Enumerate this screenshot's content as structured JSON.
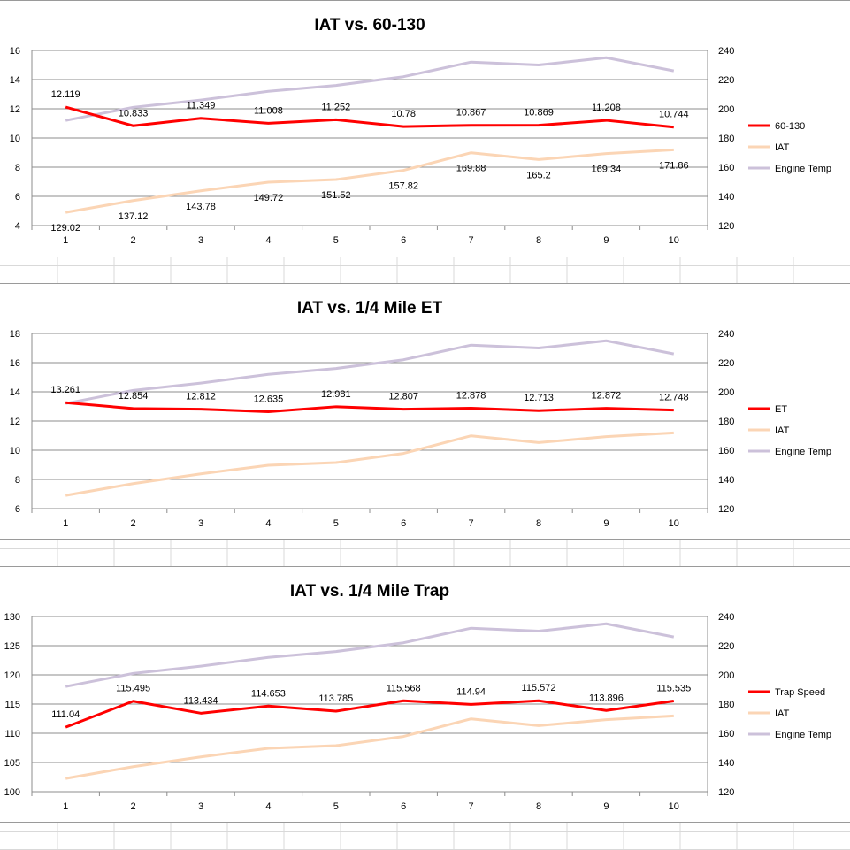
{
  "chart_data": [
    {
      "type": "line",
      "title": "IAT vs. 60-130",
      "categories": [
        "1",
        "2",
        "3",
        "4",
        "5",
        "6",
        "7",
        "8",
        "9",
        "10"
      ],
      "y_left": {
        "min": 4,
        "max": 16,
        "step": 2,
        "ticks": [
          "4",
          "6",
          "8",
          "10",
          "12",
          "14",
          "16"
        ]
      },
      "y_right": {
        "min": 120,
        "max": 240,
        "step": 20,
        "ticks": [
          "120",
          "140",
          "160",
          "180",
          "200",
          "220",
          "240"
        ]
      },
      "grid": true,
      "legend_position": "right",
      "series": [
        {
          "name": "60-130",
          "axis": "left",
          "color": "#ff0000",
          "values": [
            12.119,
            10.833,
            11.349,
            11.008,
            11.252,
            10.78,
            10.867,
            10.869,
            11.208,
            10.744
          ],
          "labels": [
            "12.119",
            "10.833",
            "11.349",
            "11.008",
            "11.252",
            "10.78",
            "10.867",
            "10.869",
            "11.208",
            "10.744"
          ]
        },
        {
          "name": "IAT",
          "axis": "right",
          "color": "#fbd5b5",
          "values": [
            129.02,
            137.12,
            143.78,
            149.72,
            151.52,
            157.82,
            169.88,
            165.2,
            169.34,
            171.86
          ],
          "labels": [
            "129.02",
            "137.12",
            "143.78",
            "149.72",
            "151.52",
            "157.82",
            "169.88",
            "165.2",
            "169.34",
            "171.86"
          ]
        },
        {
          "name": "Engine Temp",
          "axis": "right",
          "color": "#ccc1da",
          "values": [
            192,
            201,
            206,
            212,
            216,
            222,
            232,
            230,
            235,
            226
          ]
        }
      ]
    },
    {
      "type": "line",
      "title": "IAT vs. 1/4 Mile ET",
      "categories": [
        "1",
        "2",
        "3",
        "4",
        "5",
        "6",
        "7",
        "8",
        "9",
        "10"
      ],
      "y_left": {
        "min": 6,
        "max": 18,
        "step": 2,
        "ticks": [
          "6",
          "8",
          "10",
          "12",
          "14",
          "16",
          "18"
        ]
      },
      "y_right": {
        "min": 120,
        "max": 240,
        "step": 20,
        "ticks": [
          "120",
          "140",
          "160",
          "180",
          "200",
          "220",
          "240"
        ]
      },
      "grid": true,
      "legend_position": "right",
      "series": [
        {
          "name": "ET",
          "axis": "left",
          "color": "#ff0000",
          "values": [
            13.261,
            12.854,
            12.812,
            12.635,
            12.981,
            12.807,
            12.878,
            12.713,
            12.872,
            12.748
          ],
          "labels": [
            "13.261",
            "12.854",
            "12.812",
            "12.635",
            "12.981",
            "12.807",
            "12.878",
            "12.713",
            "12.872",
            "12.748"
          ]
        },
        {
          "name": "IAT",
          "axis": "right",
          "color": "#fbd5b5",
          "values": [
            129.02,
            137.12,
            143.78,
            149.72,
            151.52,
            157.82,
            169.88,
            165.2,
            169.34,
            171.86
          ]
        },
        {
          "name": "Engine Temp",
          "axis": "right",
          "color": "#ccc1da",
          "values": [
            192,
            201,
            206,
            212,
            216,
            222,
            232,
            230,
            235,
            226
          ]
        }
      ]
    },
    {
      "type": "line",
      "title": "IAT vs. 1/4 Mile Trap",
      "categories": [
        "1",
        "2",
        "3",
        "4",
        "5",
        "6",
        "7",
        "8",
        "9",
        "10"
      ],
      "y_left": {
        "min": 100,
        "max": 130,
        "step": 5,
        "ticks": [
          "100",
          "105",
          "110",
          "115",
          "120",
          "125",
          "130"
        ]
      },
      "y_right": {
        "min": 120,
        "max": 240,
        "step": 20,
        "ticks": [
          "120",
          "140",
          "160",
          "180",
          "200",
          "220",
          "240"
        ]
      },
      "grid": true,
      "legend_position": "right",
      "series": [
        {
          "name": "Trap Speed",
          "axis": "left",
          "color": "#ff0000",
          "values": [
            111.04,
            115.495,
            113.434,
            114.653,
            113.785,
            115.568,
            114.94,
            115.572,
            113.896,
            115.535
          ],
          "labels": [
            "111.04",
            "115.495",
            "113.434",
            "114.653",
            "113.785",
            "115.568",
            "114.94",
            "115.572",
            "113.896",
            "115.535"
          ]
        },
        {
          "name": "IAT",
          "axis": "right",
          "color": "#fbd5b5",
          "values": [
            129.02,
            137.12,
            143.78,
            149.72,
            151.52,
            157.82,
            169.88,
            165.2,
            169.34,
            171.86
          ]
        },
        {
          "name": "Engine Temp",
          "axis": "right",
          "color": "#ccc1da",
          "values": [
            192,
            201,
            206,
            212,
            216,
            222,
            232,
            230,
            235,
            226
          ]
        }
      ]
    }
  ]
}
